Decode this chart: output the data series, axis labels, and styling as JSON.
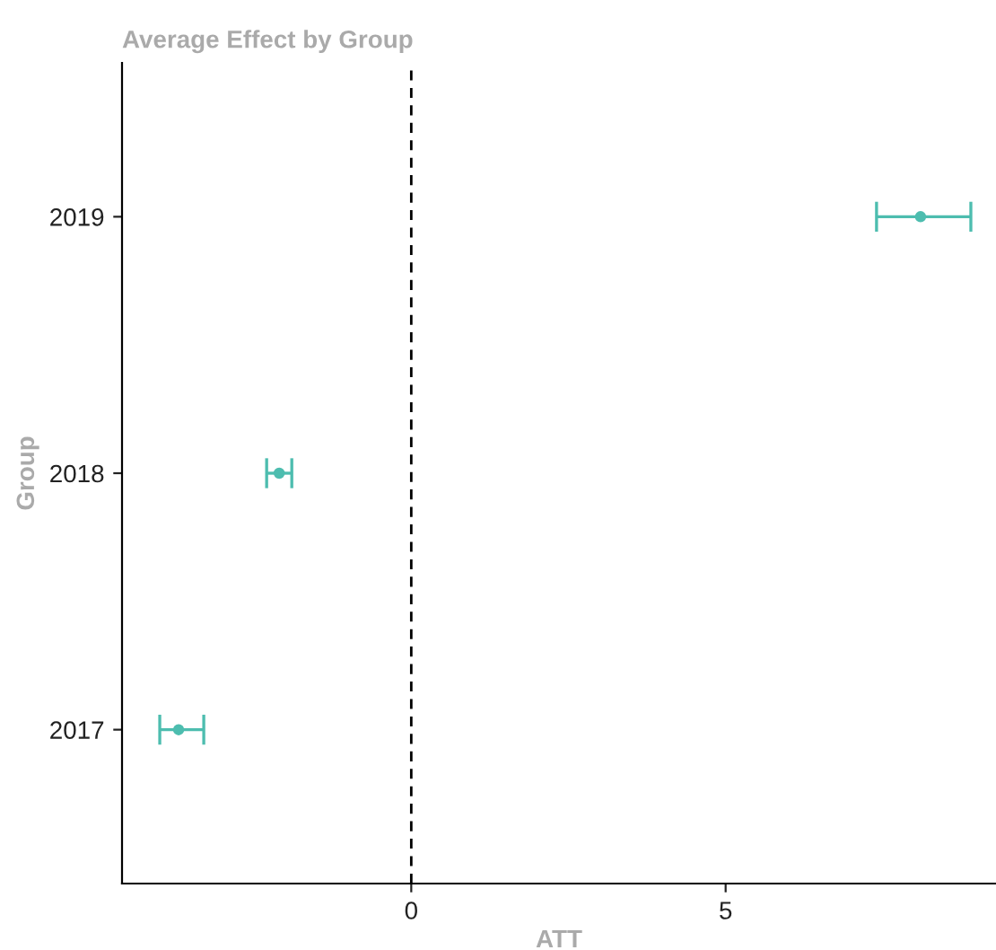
{
  "chart_data": {
    "type": "scatter",
    "orientation": "horizontal",
    "title": "Average Effect by Group",
    "xlabel": "ATT",
    "ylabel": "Group",
    "categories": [
      "2019",
      "2018",
      "2017"
    ],
    "values": [
      8.1,
      -2.1,
      -3.7
    ],
    "errors": [
      [
        7.4,
        8.9
      ],
      [
        -2.3,
        -1.9
      ],
      [
        -4.0,
        -3.3
      ]
    ],
    "color": "#4dbdaf",
    "marker": "circle",
    "xlim": [
      -4.6,
      9.3
    ],
    "xticks": [
      0,
      5
    ],
    "ref_lines": [
      {
        "axis": "x",
        "value": 0,
        "color": "#000000",
        "line_style": "dashed"
      }
    ],
    "grid": false,
    "legend": false
  }
}
